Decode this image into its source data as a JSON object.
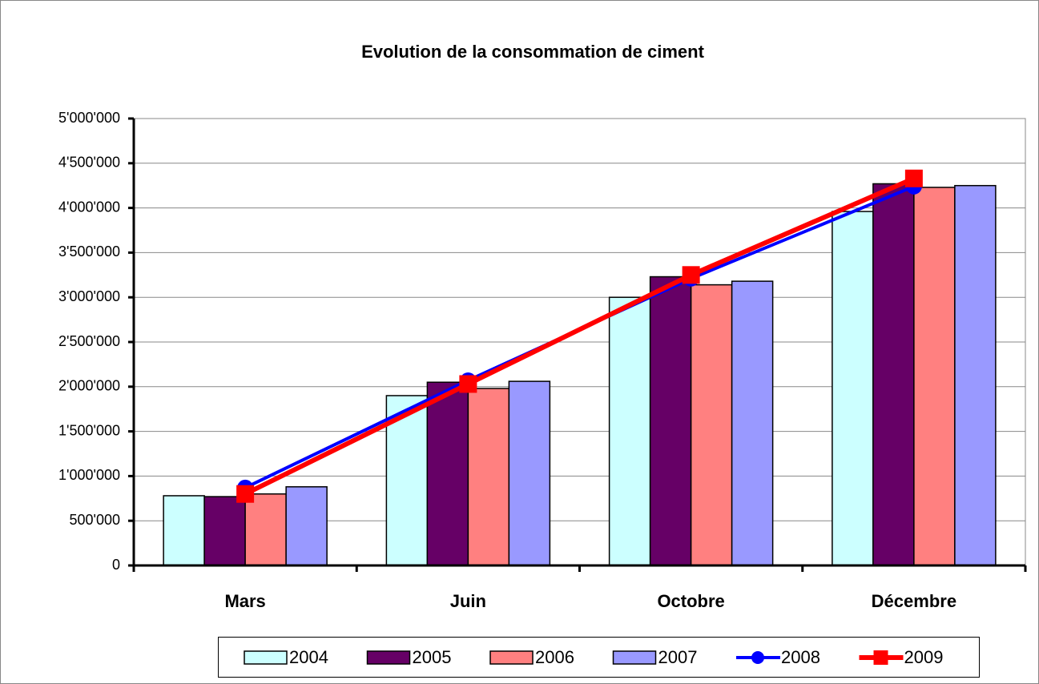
{
  "chart_data": {
    "type": "bar",
    "title": "Evolution de la consommation de ciment",
    "categories": [
      "Mars",
      "Juin",
      "Octobre",
      "Décembre"
    ],
    "series": [
      {
        "name": "2004",
        "type": "bar",
        "color": "#ccffff",
        "values": [
          780000,
          1900000,
          3000000,
          3960000
        ]
      },
      {
        "name": "2005",
        "type": "bar",
        "color": "#660066",
        "values": [
          770000,
          2050000,
          3230000,
          4270000
        ]
      },
      {
        "name": "2006",
        "type": "bar",
        "color": "#ff8080",
        "values": [
          800000,
          1980000,
          3140000,
          4230000
        ]
      },
      {
        "name": "2007",
        "type": "bar",
        "color": "#9999ff",
        "values": [
          880000,
          2060000,
          3180000,
          4250000
        ]
      },
      {
        "name": "2008",
        "type": "line",
        "marker": "circle",
        "color": "#0000ff",
        "values": [
          870000,
          2070000,
          3210000,
          4240000
        ]
      },
      {
        "name": "2009",
        "type": "line",
        "marker": "square",
        "color": "#ff0000",
        "values": [
          800000,
          2030000,
          3250000,
          4330000
        ]
      }
    ],
    "ylim": [
      0,
      5000000
    ],
    "yticks": [
      0,
      {
        "value": 500000,
        "label": "500'000"
      },
      {
        "value": 1000000,
        "label": "1'000'000"
      },
      {
        "value": 1500000,
        "label": "1'500'000"
      },
      {
        "value": 2000000,
        "label": "2'000'000"
      },
      {
        "value": 2500000,
        "label": "2'500'000"
      },
      {
        "value": 3000000,
        "label": "3'000'000"
      },
      {
        "value": 3500000,
        "label": "3'500'000"
      },
      {
        "value": 4000000,
        "label": "4'000'000"
      },
      {
        "value": 4500000,
        "label": "4'500'000"
      },
      {
        "value": 5000000,
        "label": "5'000'000"
      }
    ],
    "grid": true,
    "legend": "bottom"
  }
}
